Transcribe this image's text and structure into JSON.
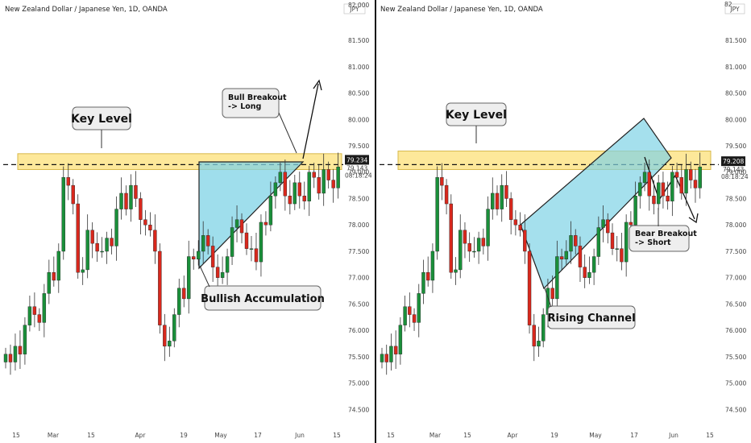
{
  "colors": {
    "up": "#1a8f3a",
    "down": "#d8281d",
    "zone_fill": "#fde89a",
    "zone_stroke": "#d7b84a",
    "pattern_fill": "#7fd3e6",
    "callout_fill": "#eeeeee",
    "price_badge": "#1b1b1b"
  },
  "chart_data": [
    {
      "type": "candlestick",
      "title": "New Zealand Dollar / Japanese Yen, 1D, OANDA",
      "currency_badge": "JPY",
      "y_axis_top_label": "82.000",
      "y_ticks": [
        "81.500",
        "81.000",
        "80.500",
        "80.000",
        "79.500",
        "79.000",
        "78.500",
        "78.000",
        "77.500",
        "77.000",
        "76.500",
        "76.000",
        "75.500",
        "75.000",
        "74.500"
      ],
      "x_ticks": [
        "15",
        "Mar",
        "15",
        "Apr",
        "19",
        "May",
        "17",
        "Jun",
        "15"
      ],
      "ylim": [
        74.4,
        82.05
      ],
      "last_price": "79.234",
      "price_line_label": "79.143",
      "countdown": "08:18:24",
      "key_level_zone": [
        79.05,
        79.35
      ],
      "key_level_label": "Key Level",
      "pattern_label": "Bullish Accumulation",
      "breakout_label": "Bull Breakout\n-> Long",
      "pattern": "ascending-triangle",
      "closes": [
        75.55,
        75.4,
        75.7,
        75.55,
        76.1,
        76.45,
        76.3,
        76.15,
        76.7,
        77.1,
        76.95,
        77.5,
        78.9,
        78.75,
        78.4,
        77.1,
        77.15,
        77.9,
        77.65,
        77.5,
        77.5,
        77.75,
        77.6,
        78.3,
        78.6,
        78.3,
        78.75,
        78.5,
        78.1,
        78.0,
        77.9,
        77.5,
        76.1,
        75.7,
        75.8,
        76.3,
        76.8,
        76.6,
        77.4,
        77.35,
        77.5,
        77.8,
        77.6,
        77.2,
        77.0,
        77.1,
        77.4,
        77.95,
        78.1,
        77.85,
        77.55,
        77.55,
        77.3,
        78.05,
        78.0,
        78.55,
        78.8,
        79.0,
        78.55,
        78.4,
        78.8,
        78.55,
        78.45,
        79.0,
        78.9,
        78.6,
        79.05,
        78.85,
        78.7,
        79.1
      ]
    },
    {
      "type": "candlestick",
      "title": "New Zealand Dollar / Japanese Yen, 1D, OANDA",
      "currency_badge": "JPY",
      "y_axis_top_label": "82",
      "y_ticks": [
        "81.500",
        "81.000",
        "80.500",
        "80.000",
        "79.500",
        "79.000",
        "78.500",
        "78.000",
        "77.500",
        "77.000",
        "76.500",
        "76.000",
        "75.500",
        "75.000",
        "74.500"
      ],
      "x_ticks": [
        "15",
        "Mar",
        "15",
        "Apr",
        "19",
        "May",
        "17",
        "Jun",
        "15"
      ],
      "ylim": [
        74.4,
        82.05
      ],
      "last_price": "79.208",
      "price_line_label": "79.143",
      "countdown": "08:18:24",
      "key_level_zone": [
        79.05,
        79.4
      ],
      "key_level_label": "Key Level",
      "pattern_label": "Rising Channel",
      "breakout_label": "Bear Breakout\n-> Short",
      "pattern": "rising-channel",
      "closes": [
        75.55,
        75.4,
        75.7,
        75.55,
        76.1,
        76.45,
        76.3,
        76.15,
        76.7,
        77.1,
        76.95,
        77.5,
        78.9,
        78.75,
        78.4,
        77.1,
        77.15,
        77.9,
        77.65,
        77.5,
        77.5,
        77.75,
        77.6,
        78.3,
        78.6,
        78.3,
        78.75,
        78.5,
        78.1,
        78.0,
        77.9,
        77.5,
        76.1,
        75.7,
        75.8,
        76.3,
        76.8,
        76.6,
        77.4,
        77.35,
        77.5,
        77.8,
        77.6,
        77.2,
        77.0,
        77.1,
        77.4,
        77.95,
        78.1,
        77.85,
        77.55,
        77.55,
        77.3,
        78.05,
        78.0,
        78.55,
        78.8,
        79.0,
        78.55,
        78.4,
        78.8,
        78.55,
        78.45,
        79.0,
        78.9,
        78.6,
        79.05,
        78.85,
        78.7,
        79.1
      ]
    }
  ]
}
